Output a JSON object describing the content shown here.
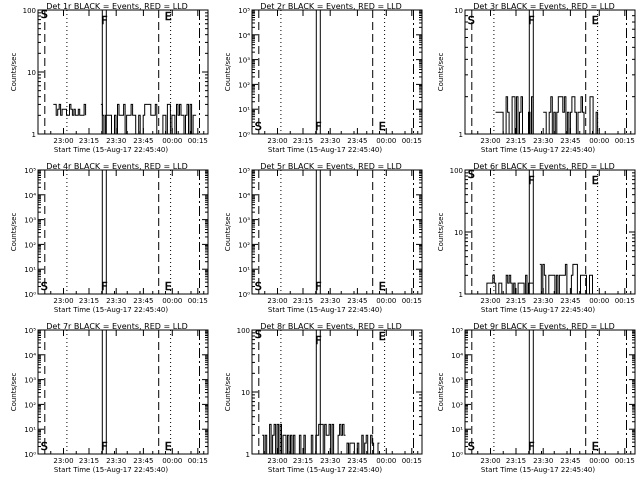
{
  "chart_data": [
    {
      "type": "line",
      "title": "Det 1r BLACK = Events, RED = LLD",
      "xlabel": "Start Time (15-Aug-17 22:45:40)",
      "ylabel": "Counts/sec",
      "y_scale": "log",
      "ylim": [
        1,
        100
      ],
      "y_tick_labels": [
        "1",
        "10",
        "100"
      ],
      "x_tick_labels": [
        "23:00",
        "23:15",
        "23:30",
        "23:45",
        "00:00",
        "00:15"
      ],
      "markers": [
        "S",
        "F",
        "E"
      ],
      "series": [
        {
          "color": "#000000",
          "segments": [
            [
              0.09,
              0.28,
              2,
              3
            ],
            [
              0.37,
              0.93,
              1,
              3
            ]
          ]
        }
      ]
    },
    {
      "type": "line",
      "title": "Det 2r BLACK = Events, RED = LLD",
      "xlabel": "Start Time (15-Aug-17 22:45:40)",
      "ylabel": "Counts/sec",
      "y_scale": "log",
      "ylim": [
        1,
        100000
      ],
      "y_tick_labels": [
        "10⁰",
        "10¹",
        "10²",
        "10³",
        "10⁴",
        "10⁵"
      ],
      "x_tick_labels": [
        "23:00",
        "23:15",
        "23:30",
        "23:45",
        "00:00",
        "00:15"
      ],
      "markers": [
        "S",
        "F",
        "E"
      ],
      "series": []
    },
    {
      "type": "line",
      "title": "Det 3r BLACK = Events, RED = LLD",
      "xlabel": "Start Time (15-Aug-17 22:45:40)",
      "ylabel": "Counts/sec",
      "y_scale": "log",
      "ylim": [
        1,
        10
      ],
      "y_tick_labels": [
        "1",
        "10"
      ],
      "x_tick_labels": [
        "23:00",
        "23:15",
        "23:30",
        "23:45",
        "00:00",
        "00:15"
      ],
      "markers": [
        "S",
        "F",
        "E"
      ],
      "series": [
        {
          "color": "#000000",
          "segments": [
            [
              0.18,
              0.4,
              1,
              2
            ],
            [
              0.46,
              0.78,
              1,
              2
            ]
          ]
        }
      ]
    },
    {
      "type": "line",
      "title": "Det 4r BLACK = Events, RED = LLD",
      "xlabel": "Start Time (15-Aug-17 22:45:40)",
      "ylabel": "Counts/sec",
      "y_scale": "log",
      "ylim": [
        1,
        100000
      ],
      "y_tick_labels": [
        "10⁰",
        "10¹",
        "10²",
        "10³",
        "10⁴",
        "10⁵"
      ],
      "x_tick_labels": [
        "23:00",
        "23:15",
        "23:30",
        "23:45",
        "00:00",
        "00:15"
      ],
      "markers": [
        "S",
        "F",
        "E"
      ],
      "series": []
    },
    {
      "type": "line",
      "title": "Det 5r BLACK = Events, RED = LLD",
      "xlabel": "Start Time (15-Aug-17 22:45:40)",
      "ylabel": "Counts/sec",
      "y_scale": "log",
      "ylim": [
        1,
        100000
      ],
      "y_tick_labels": [
        "10⁰",
        "10¹",
        "10²",
        "10³",
        "10⁴",
        "10⁵"
      ],
      "x_tick_labels": [
        "23:00",
        "23:15",
        "23:30",
        "23:45",
        "00:00",
        "00:15"
      ],
      "markers": [
        "S",
        "F",
        "E"
      ],
      "series": []
    },
    {
      "type": "line",
      "title": "Det 6r BLACK = Events, RED = LLD",
      "xlabel": "Start Time (15-Aug-17 22:45:40)",
      "ylabel": "Counts/sec",
      "y_scale": "log",
      "ylim": [
        1,
        100
      ],
      "y_tick_labels": [
        "1",
        "10",
        "100"
      ],
      "x_tick_labels": [
        "23:00",
        "23:15",
        "23:30",
        "23:45",
        "00:00",
        "00:15"
      ],
      "markers": [
        "S",
        "F",
        "E"
      ],
      "series": [
        {
          "color": "#000000",
          "segments": [
            [
              0.12,
              0.4,
              1,
              2
            ],
            [
              0.44,
              0.75,
              1,
              3
            ]
          ]
        }
      ]
    },
    {
      "type": "line",
      "title": "Det 7r BLACK = Events, RED = LLD",
      "xlabel": "Start Time (15-Aug-17 22:45:40)",
      "ylabel": "Counts/sec",
      "y_scale": "log",
      "ylim": [
        1,
        100000
      ],
      "y_tick_labels": [
        "10⁰",
        "10¹",
        "10²",
        "10³",
        "10⁴",
        "10⁵"
      ],
      "x_tick_labels": [
        "23:00",
        "23:15",
        "23:30",
        "23:45",
        "00:00",
        "00:15"
      ],
      "markers": [
        "S",
        "F",
        "E"
      ],
      "series": []
    },
    {
      "type": "line",
      "title": "Det 8r BLACK = Events, RED = LLD",
      "xlabel": "Start Time (15-Aug-17 22:45:40)",
      "ylabel": "Counts/sec",
      "y_scale": "log",
      "ylim": [
        1,
        100
      ],
      "y_tick_labels": [
        "1",
        "10",
        "100"
      ],
      "x_tick_labels": [
        "23:00",
        "23:15",
        "23:30",
        "23:45",
        "00:00",
        "00:15"
      ],
      "markers": [
        "S",
        "F",
        "E"
      ],
      "series": [
        {
          "color": "#000000",
          "segments": [
            [
              0.06,
              0.55,
              1,
              3
            ],
            [
              0.55,
              0.75,
              1,
              2
            ]
          ]
        }
      ]
    },
    {
      "type": "line",
      "title": "Det 9r BLACK = Events, RED = LLD",
      "xlabel": "Start Time (15-Aug-17 22:45:40)",
      "ylabel": "Counts/sec",
      "y_scale": "log",
      "ylim": [
        1,
        100000
      ],
      "y_tick_labels": [
        "10⁰",
        "10¹",
        "10²",
        "10³",
        "10⁴",
        "10⁵"
      ],
      "x_tick_labels": [
        "23:00",
        "23:15",
        "23:30",
        "23:45",
        "00:00",
        "00:15"
      ],
      "markers": [
        "S",
        "F",
        "E"
      ],
      "series": []
    }
  ]
}
